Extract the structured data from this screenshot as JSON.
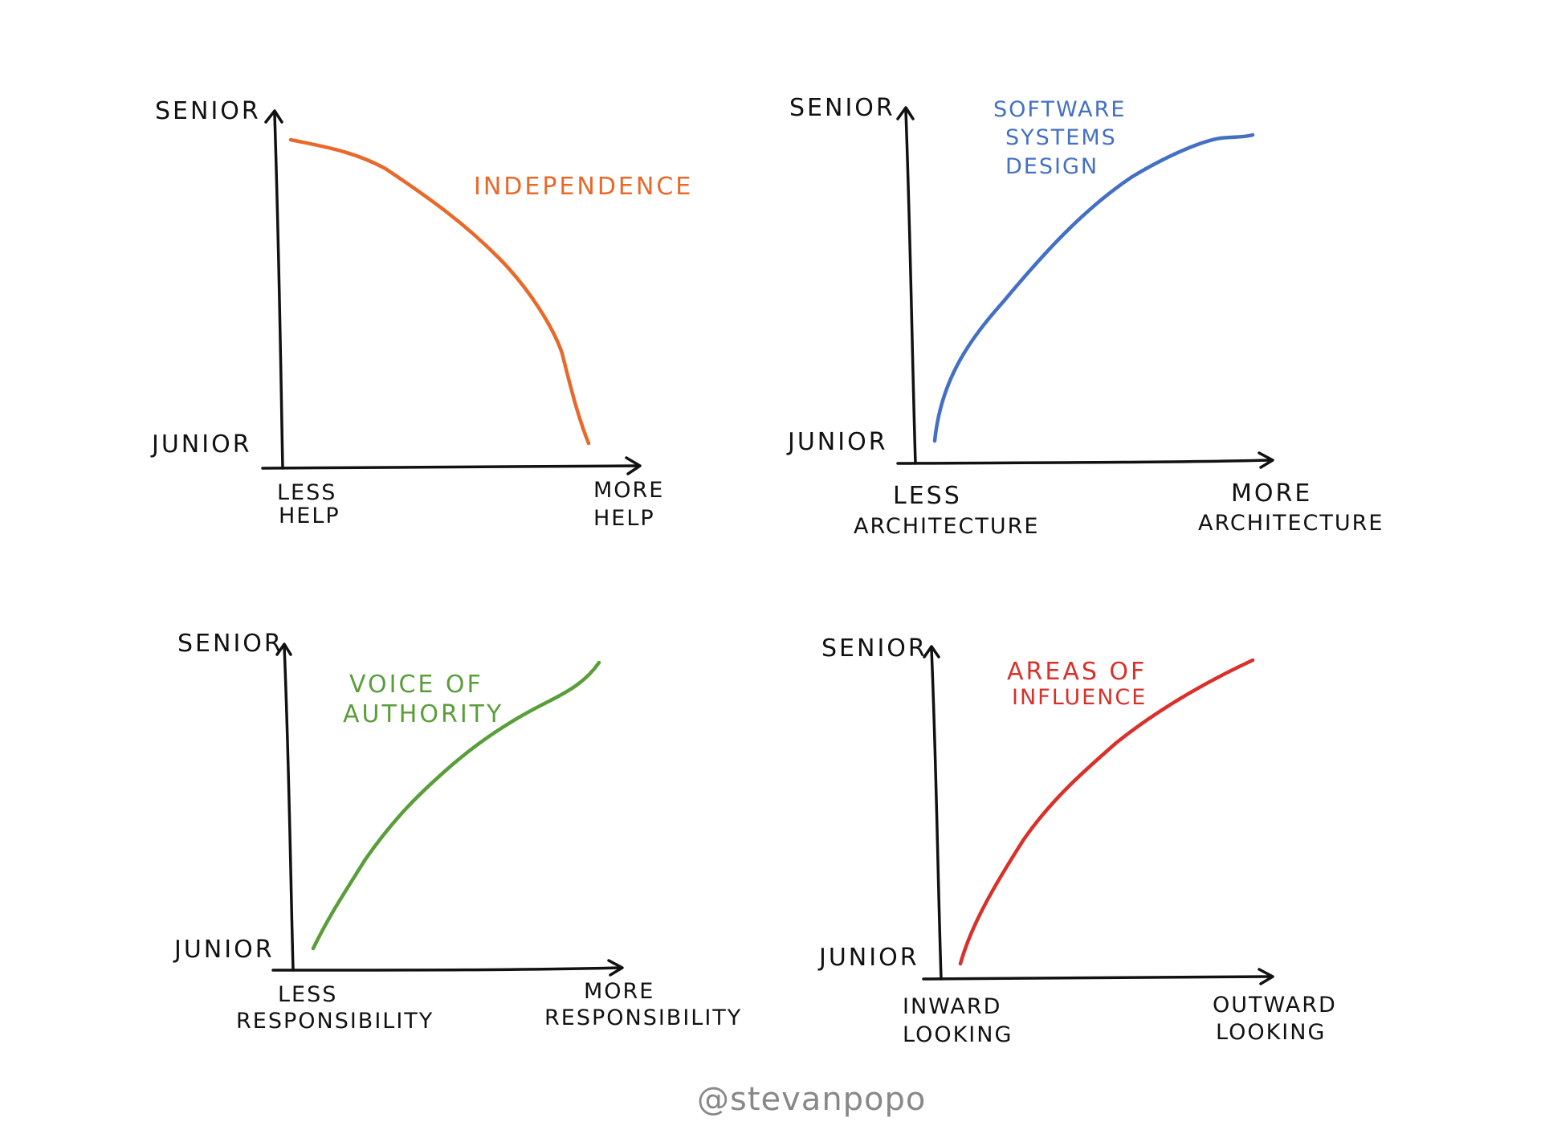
{
  "credit": "@stevanpopo",
  "chart_data": [
    {
      "type": "line",
      "y_axis_labels": {
        "top": "SENIOR",
        "bottom": "JUNIOR"
      },
      "x_axis_labels": {
        "left": [
          "LESS",
          "HELP"
        ],
        "right": [
          "MORE",
          "HELP"
        ]
      },
      "series": [
        {
          "name": [
            "INDEPENDENCE"
          ],
          "color": "#e8692a",
          "trend": "decreasing"
        }
      ]
    },
    {
      "type": "line",
      "y_axis_labels": {
        "top": "SENIOR",
        "bottom": "JUNIOR"
      },
      "x_axis_labels": {
        "left": [
          "LESS",
          "ARCHITECTURE"
        ],
        "right": [
          "MORE",
          "ARCHITECTURE"
        ]
      },
      "series": [
        {
          "name": [
            "SOFTWARE",
            "SYSTEMS",
            "DESIGN"
          ],
          "color": "#4470c4",
          "trend": "increasing"
        }
      ]
    },
    {
      "type": "line",
      "y_axis_labels": {
        "top": "SENIOR",
        "bottom": "JUNIOR"
      },
      "x_axis_labels": {
        "left": [
          "LESS",
          "RESPONSIBILITY"
        ],
        "right": [
          "MORE",
          "RESPONSIBILITY"
        ]
      },
      "series": [
        {
          "name": [
            "VOICE  OF",
            "AUTHORITY"
          ],
          "color": "#5a9e3a",
          "trend": "increasing"
        }
      ]
    },
    {
      "type": "line",
      "y_axis_labels": {
        "top": "SENIOR",
        "bottom": "JUNIOR"
      },
      "x_axis_labels": {
        "left": [
          "INWARD",
          "LOOKING"
        ],
        "right": [
          "OUTWARD",
          "LOOKING"
        ]
      },
      "series": [
        {
          "name": [
            "AREAS OF",
            "INFLUENCE"
          ],
          "color": "#d9302a",
          "trend": "increasing"
        }
      ]
    }
  ]
}
